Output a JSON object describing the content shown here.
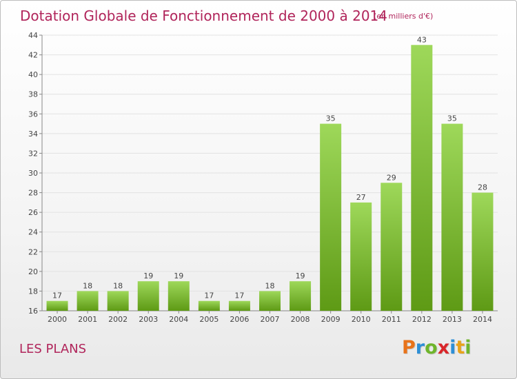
{
  "header": {
    "title": "Dotation Globale de Fonctionnement de 2000 à 2014",
    "unit": "(en milliers d'€)"
  },
  "commune": "LES PLANS",
  "brand": {
    "name": "Proxiti",
    "letters": [
      {
        "char": "P",
        "color": "#e8731a"
      },
      {
        "char": "r",
        "color": "#2d8fd6"
      },
      {
        "char": "o",
        "color": "#6fb52c"
      },
      {
        "char": "x",
        "color": "#d9262a"
      },
      {
        "char": "i",
        "color": "#2d8fd6"
      },
      {
        "char": "t",
        "color": "#e8a31a"
      },
      {
        "char": "i",
        "color": "#6fb52c"
      }
    ]
  },
  "colors": {
    "title": "#b0245a",
    "bar_light": "#9ed85a",
    "bar_dark": "#5e9a15",
    "axis": "#888888",
    "grid": "#e2e2e2",
    "text": "#444444"
  },
  "chart_data": {
    "type": "bar",
    "title": "Dotation Globale de Fonctionnement de 2000 à 2014",
    "subtitle": "(en milliers d'€)",
    "xlabel": "",
    "ylabel": "",
    "categories": [
      "2000",
      "2001",
      "2002",
      "2003",
      "2004",
      "2005",
      "2006",
      "2007",
      "2008",
      "2009",
      "2010",
      "2011",
      "2012",
      "2013",
      "2014"
    ],
    "values": [
      17,
      18,
      18,
      19,
      19,
      17,
      17,
      18,
      19,
      35,
      27,
      29,
      43,
      35,
      28
    ],
    "ylim": [
      16,
      44
    ],
    "yticks": [
      16,
      18,
      20,
      22,
      24,
      26,
      28,
      30,
      32,
      34,
      36,
      38,
      40,
      42,
      44
    ],
    "grid": true,
    "data_labels": true
  }
}
